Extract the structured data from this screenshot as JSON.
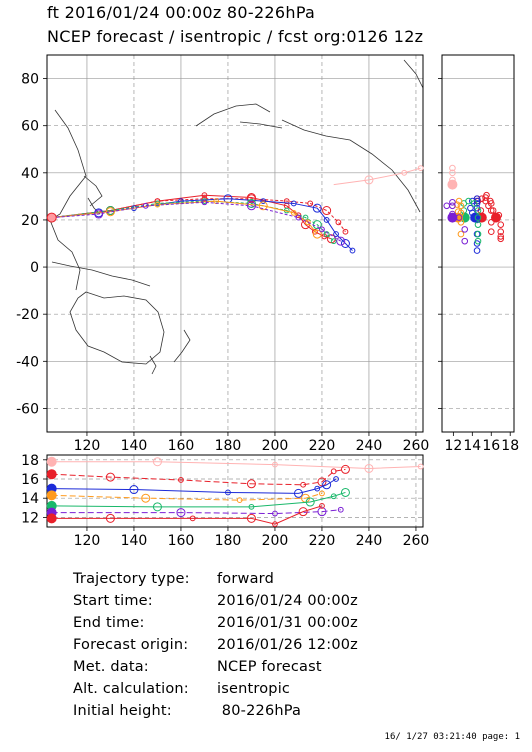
{
  "header": {
    "line1": "ft 2016/01/24 00:00z  80-226hPa",
    "line2": "NCEP forecast / isentropic / fcst org:0126 12z"
  },
  "chart_data": [
    {
      "type": "scatter",
      "panel": "map",
      "xlim": [
        103,
        263
      ],
      "ylim": [
        -70,
        90
      ],
      "x_ticks": [
        "120",
        "140",
        "160",
        "180",
        "200",
        "220",
        "240",
        "260"
      ],
      "y_ticks": [
        "80",
        "60",
        "40",
        "20",
        "0",
        "-20",
        "-40",
        "-60"
      ],
      "grid": true,
      "series": [
        {
          "color": "#e8202a",
          "values": [
            [
              105,
              21
            ],
            [
              130,
              24
            ],
            [
              150,
              28
            ],
            [
              170,
              30.5
            ],
            [
              190,
              29.5
            ],
            [
              205,
              26
            ],
            [
              210,
              22
            ],
            [
              213,
              18
            ],
            [
              217,
              15
            ],
            [
              221,
              13
            ],
            [
              224,
              12
            ]
          ]
        },
        {
          "color": "#e8202a",
          "values": [
            [
              105,
              21
            ],
            [
              130,
              24
            ],
            [
              150,
              28
            ],
            [
              170,
              29
            ],
            [
              190,
              29
            ],
            [
              205,
              28
            ],
            [
              215,
              27
            ],
            [
              222,
              24
            ],
            [
              227,
              19
            ],
            [
              230,
              15
            ]
          ]
        },
        {
          "color": "#1c2bd8",
          "values": [
            [
              105,
              21
            ],
            [
              125,
              23
            ],
            [
              140,
              25
            ],
            [
              160,
              28
            ],
            [
              180,
              29
            ],
            [
              195,
              28
            ],
            [
              208,
              27
            ],
            [
              218,
              25
            ],
            [
              222,
              20
            ],
            [
              226,
              14
            ],
            [
              230,
              10
            ],
            [
              233,
              7
            ]
          ]
        },
        {
          "color": "#19b86a",
          "values": [
            [
              105,
              21
            ],
            [
              130,
              24
            ],
            [
              150,
              27
            ],
            [
              170,
              28
            ],
            [
              190,
              27
            ],
            [
              205,
              24
            ],
            [
              213,
              21
            ],
            [
              218,
              18
            ],
            [
              222,
              14
            ],
            [
              225,
              11
            ]
          ]
        },
        {
          "color": "#ff9a1c",
          "values": [
            [
              105,
              21
            ],
            [
              130,
              23.5
            ],
            [
              150,
              26.5
            ],
            [
              175,
              28
            ],
            [
              195,
              26
            ],
            [
              208,
              23
            ],
            [
              214,
              19
            ],
            [
              218,
              14
            ]
          ]
        },
        {
          "color": "#7a1fd4",
          "values": [
            [
              105,
              21
            ],
            [
              125,
              22.5
            ],
            [
              145,
              26
            ],
            [
              170,
              27.5
            ],
            [
              190,
              26
            ],
            [
              210,
              21
            ],
            [
              220,
              16
            ],
            [
              228,
              11
            ]
          ]
        },
        {
          "color": "#ffb3b3",
          "values": [
            [
              225,
              35
            ],
            [
              240,
              37
            ],
            [
              255,
              40
            ],
            [
              262,
              42
            ]
          ]
        }
      ]
    },
    {
      "type": "line",
      "panel": "height-vs-longitude",
      "xlim": [
        103,
        263
      ],
      "ylim": [
        11,
        18.5
      ],
      "x_ticks": [
        "120",
        "140",
        "160",
        "180",
        "200",
        "220",
        "240",
        "260"
      ],
      "y_ticks": [
        "18",
        "16",
        "14",
        "12"
      ],
      "grid": true,
      "series": [
        {
          "color": "#ffb3b3",
          "values": [
            [
              105,
              17.8
            ],
            [
              150,
              17.8
            ],
            [
              200,
              17.5
            ],
            [
              240,
              17.1
            ],
            [
              262,
              17.3
            ]
          ]
        },
        {
          "color": "#e8202a",
          "values": [
            [
              105,
              16.5
            ],
            [
              130,
              16.2
            ],
            [
              160,
              15.9
            ],
            [
              190,
              15.5
            ],
            [
              212,
              15.4
            ],
            [
              220,
              15.7
            ],
            [
              225,
              16.8
            ],
            [
              230,
              17
            ]
          ]
        },
        {
          "color": "#1c2bd8",
          "values": [
            [
              105,
              15
            ],
            [
              140,
              14.9
            ],
            [
              180,
              14.6
            ],
            [
              210,
              14.5
            ],
            [
              218,
              15
            ],
            [
              222,
              15.4
            ],
            [
              226,
              16
            ]
          ]
        },
        {
          "color": "#ff9a1c",
          "values": [
            [
              105,
              14.3
            ],
            [
              145,
              14
            ],
            [
              185,
              13.8
            ],
            [
              213,
              14
            ],
            [
              220,
              14.5
            ]
          ]
        },
        {
          "color": "#19b86a",
          "values": [
            [
              105,
              13.2
            ],
            [
              150,
              13.1
            ],
            [
              190,
              13.1
            ],
            [
              215,
              13.6
            ],
            [
              225,
              14.2
            ],
            [
              230,
              14.6
            ]
          ]
        },
        {
          "color": "#7a1fd4",
          "values": [
            [
              105,
              12.5
            ],
            [
              160,
              12.5
            ],
            [
              200,
              12.4
            ],
            [
              220,
              12.6
            ],
            [
              228,
              12.8
            ]
          ]
        },
        {
          "color": "#e8202a",
          "values": [
            [
              105,
              11.9
            ],
            [
              130,
              11.9
            ],
            [
              165,
              11.9
            ],
            [
              190,
              11.9
            ],
            [
              200,
              11.3
            ],
            [
              212,
              12.6
            ],
            [
              220,
              13.2
            ]
          ]
        }
      ]
    },
    {
      "type": "scatter",
      "panel": "height-vs-latitude",
      "xlim": [
        10.8,
        18.4
      ],
      "ylim": [
        -70,
        90
      ],
      "x_ticks": [
        "12",
        "14",
        "16",
        "18"
      ],
      "grid": true
    }
  ],
  "info": {
    "rows": [
      {
        "label": "Trajectory type:",
        "value": "forward"
      },
      {
        "label": "Start time:",
        "value": "2016/01/24 00:00z"
      },
      {
        "label": "End time:",
        "value": "2016/01/31 00:00z"
      },
      {
        "label": "Forecast origin:",
        "value": "2016/01/26 12:00z"
      },
      {
        "label": "Met. data:",
        "value": "NCEP forecast"
      },
      {
        "label": "Alt. calculation:",
        "value": "isentropic"
      },
      {
        "label": "Initial height:",
        "value": " 80-226hPa"
      }
    ]
  },
  "footer": "16/ 1/27 03:21:40 page: 1"
}
